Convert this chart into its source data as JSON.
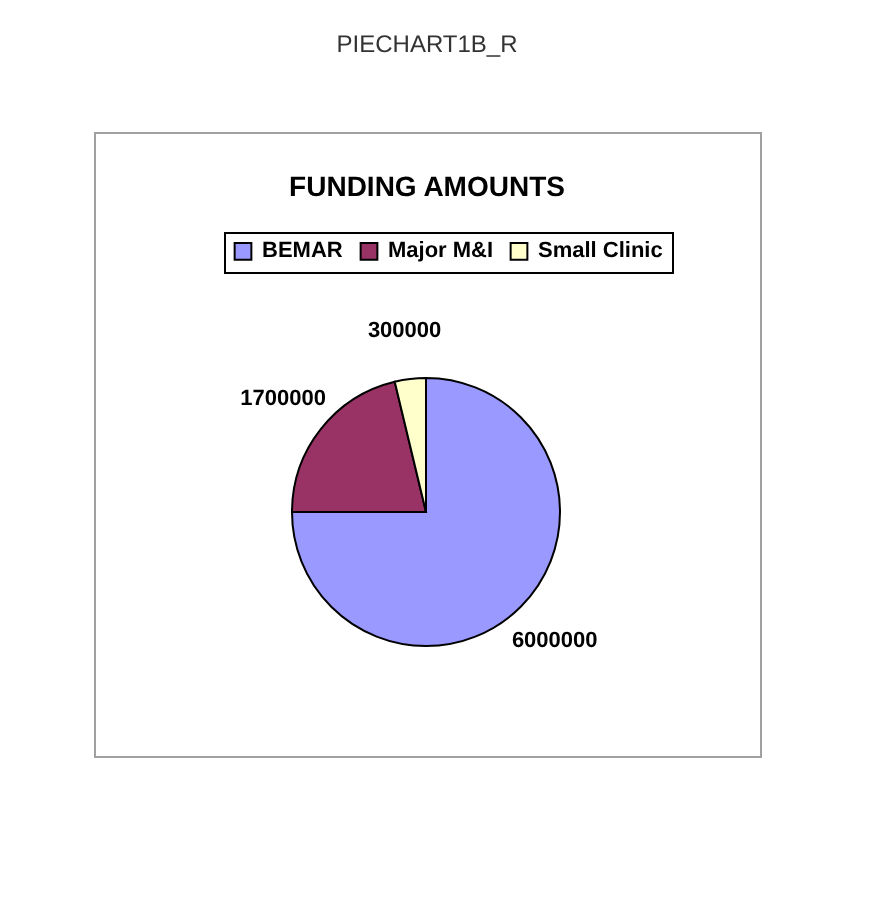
{
  "chart_data": {
    "type": "pie",
    "title": "FUNDING AMOUNTS",
    "categories": [
      "BEMAR",
      "Major M&I",
      "Small Clinic"
    ],
    "values": [
      6000000,
      1700000,
      300000
    ],
    "colors": [
      "#9999ff",
      "#993366",
      "#ffffcc"
    ],
    "data_labels": true,
    "legend": "top",
    "annotations": [
      "PIECHART1B_R"
    ]
  }
}
